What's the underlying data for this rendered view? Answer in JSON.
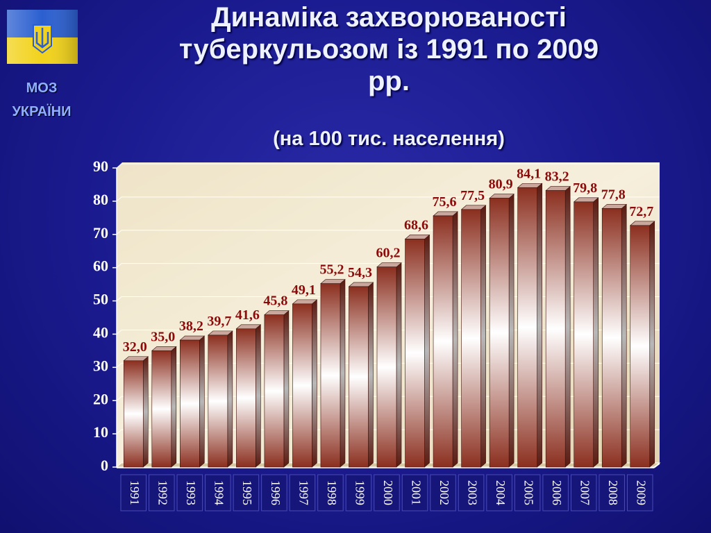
{
  "logo": {
    "line1": "МОЗ",
    "line2": "УКРАЇНИ"
  },
  "chart_data": {
    "type": "bar",
    "title": "Динаміка захворюваності туберкульозом із 1991 по 2009 рр.",
    "subtitle": "(на 100 тис. населення)",
    "categories": [
      "1991",
      "1992",
      "1993",
      "1994",
      "1995",
      "1996",
      "1997",
      "1998",
      "1999",
      "2000",
      "2001",
      "2002",
      "2003",
      "2004",
      "2005",
      "2006",
      "2007",
      "2008",
      "2009"
    ],
    "values": [
      32.0,
      35.0,
      38.2,
      39.7,
      41.6,
      45.8,
      49.1,
      55.2,
      54.3,
      60.2,
      68.6,
      75.6,
      77.5,
      80.9,
      84.1,
      83.2,
      79.8,
      77.8,
      72.7
    ],
    "value_labels": [
      "32,0",
      "35,0",
      "38,2",
      "39,7",
      "41,6",
      "45,8",
      "49,1",
      "55,2",
      "54,3",
      "60,2",
      "68,6",
      "75,6",
      "77,5",
      "80,9",
      "84,1",
      "83,2",
      "79,8",
      "77,8",
      "72,7"
    ],
    "color": "#8b2f1f",
    "ylim": [
      0,
      90
    ],
    "yticks": [
      0,
      10,
      20,
      30,
      40,
      50,
      60,
      70,
      80,
      90
    ],
    "grid": true
  }
}
